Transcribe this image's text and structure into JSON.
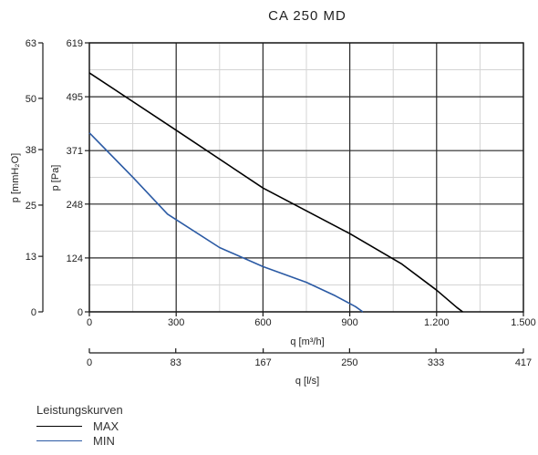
{
  "chart_data": {
    "type": "line",
    "title": "CA 250 MD",
    "x_axis": {
      "label": "q [m³/h]",
      "range": [
        0,
        1500
      ],
      "ticks": [
        0,
        300,
        600,
        900,
        1200,
        1500
      ],
      "tick_labels": [
        "0",
        "300",
        "600",
        "900",
        "1.200",
        "1.500"
      ]
    },
    "x2_axis": {
      "label": "q [l/s]",
      "range": [
        0,
        417
      ],
      "ticks": [
        0,
        83,
        167,
        250,
        333,
        417
      ],
      "tick_labels": [
        "0",
        "83",
        "167",
        "250",
        "333",
        "417"
      ]
    },
    "y_axis": {
      "label": "p [Pa]",
      "range": [
        0,
        619
      ],
      "ticks": [
        0,
        124,
        248,
        371,
        495,
        619
      ],
      "tick_labels": [
        "0",
        "124",
        "248",
        "371",
        "495",
        "619"
      ]
    },
    "y2_axis": {
      "label": "p [mmH₂O]",
      "range": [
        0,
        63
      ],
      "ticks": [
        0,
        13,
        25,
        38,
        50,
        63
      ],
      "tick_labels": [
        "0",
        "13",
        "25",
        "38",
        "50",
        "63"
      ]
    },
    "grid": true,
    "legend_title": "Leistungskurven",
    "legend_position": "bottom-left",
    "series": [
      {
        "name": "MAX",
        "color": "#000000",
        "points": [
          [
            0,
            550
          ],
          [
            300,
            418
          ],
          [
            600,
            285
          ],
          [
            900,
            180
          ],
          [
            1080,
            110
          ],
          [
            1200,
            50
          ],
          [
            1270,
            10
          ],
          [
            1290,
            0
          ]
        ]
      },
      {
        "name": "MIN",
        "color": "#2b5aa4",
        "points": [
          [
            0,
            412
          ],
          [
            150,
            310
          ],
          [
            270,
            225
          ],
          [
            450,
            148
          ],
          [
            600,
            104
          ],
          [
            750,
            68
          ],
          [
            850,
            37
          ],
          [
            920,
            12
          ],
          [
            945,
            0
          ]
        ]
      }
    ]
  }
}
